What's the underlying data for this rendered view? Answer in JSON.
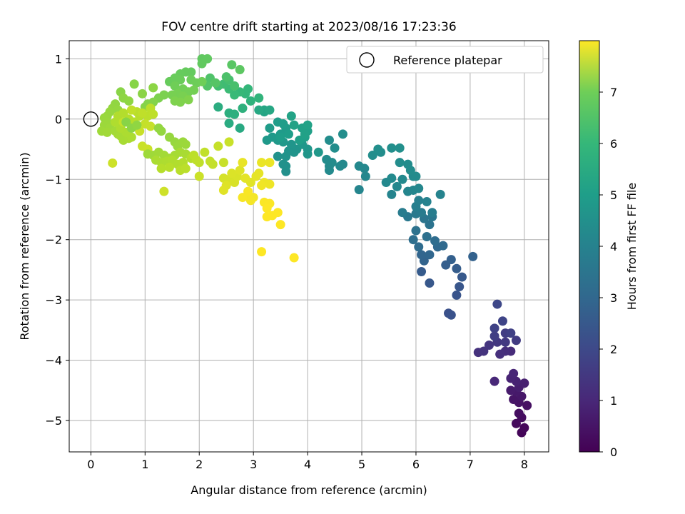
{
  "chart_data": {
    "type": "scatter",
    "title": "FOV centre drift starting at 2023/08/16 17:23:36",
    "xlabel": "Angular distance from reference (arcmin)",
    "ylabel": "Rotation from reference (arcmin)",
    "xlim": [
      -0.4,
      8.45
    ],
    "ylim": [
      -5.52,
      1.3
    ],
    "xticks": [
      "0",
      "1",
      "2",
      "3",
      "4",
      "5",
      "6",
      "7",
      "8"
    ],
    "yticks": [
      "1",
      "0",
      "−1",
      "−2",
      "−3",
      "−4",
      "−5"
    ],
    "grid": true,
    "colormap": "viridis",
    "colorbar": {
      "label": "Hours from first FF file",
      "range": [
        0,
        8.0
      ],
      "ticks": [
        "0",
        "1",
        "2",
        "3",
        "4",
        "5",
        "6",
        "7"
      ]
    },
    "legend": {
      "location": "upper right",
      "entries": [
        "Reference platepar"
      ]
    },
    "reference_point": {
      "x": 0,
      "y": 0
    },
    "points": [
      [
        7.95,
        -5.2,
        0.1
      ],
      [
        8.0,
        -5.12,
        0.15
      ],
      [
        7.85,
        -5.05,
        0.2
      ],
      [
        7.95,
        -4.95,
        0.25
      ],
      [
        7.9,
        -4.88,
        0.3
      ],
      [
        8.05,
        -4.75,
        0.35
      ],
      [
        7.9,
        -4.7,
        0.4
      ],
      [
        7.8,
        -4.65,
        0.45
      ],
      [
        7.95,
        -4.6,
        0.5
      ],
      [
        7.85,
        -4.52,
        0.55
      ],
      [
        7.75,
        -4.5,
        0.6
      ],
      [
        7.9,
        -4.45,
        0.65
      ],
      [
        8.0,
        -4.38,
        0.7
      ],
      [
        7.85,
        -4.35,
        0.75
      ],
      [
        7.75,
        -4.3,
        0.8
      ],
      [
        7.8,
        -4.22,
        0.85
      ],
      [
        7.45,
        -4.35,
        0.9
      ],
      [
        7.75,
        -3.85,
        1.0
      ],
      [
        7.65,
        -3.85,
        1.05
      ],
      [
        7.55,
        -3.9,
        1.1
      ],
      [
        7.15,
        -3.87,
        1.15
      ],
      [
        7.25,
        -3.85,
        1.2
      ],
      [
        7.35,
        -3.75,
        1.25
      ],
      [
        7.5,
        -3.7,
        1.3
      ],
      [
        7.65,
        -3.7,
        1.35
      ],
      [
        7.85,
        -3.67,
        1.4
      ],
      [
        7.65,
        -3.55,
        1.45
      ],
      [
        7.45,
        -3.6,
        1.5
      ],
      [
        7.75,
        -3.55,
        1.55
      ],
      [
        7.45,
        -3.47,
        1.6
      ],
      [
        7.6,
        -3.35,
        1.65
      ],
      [
        7.5,
        -3.07,
        1.75
      ],
      [
        6.6,
        -3.22,
        2.0
      ],
      [
        6.65,
        -3.25,
        2.05
      ],
      [
        6.75,
        -2.92,
        2.1
      ],
      [
        6.8,
        -2.78,
        2.15
      ],
      [
        6.25,
        -2.72,
        2.2
      ],
      [
        6.85,
        -2.62,
        2.25
      ],
      [
        6.1,
        -2.53,
        2.3
      ],
      [
        6.75,
        -2.48,
        2.35
      ],
      [
        6.55,
        -2.42,
        2.4
      ],
      [
        6.65,
        -2.33,
        2.45
      ],
      [
        7.05,
        -2.28,
        2.5
      ],
      [
        6.15,
        -2.35,
        2.55
      ],
      [
        6.1,
        -2.25,
        2.6
      ],
      [
        6.25,
        -2.25,
        2.65
      ],
      [
        6.4,
        -2.12,
        2.7
      ],
      [
        6.5,
        -2.1,
        2.75
      ],
      [
        6.05,
        -2.12,
        2.8
      ],
      [
        6.35,
        -2.02,
        2.85
      ],
      [
        5.95,
        -2.0,
        2.9
      ],
      [
        6.2,
        -1.95,
        2.95
      ],
      [
        6.0,
        -1.85,
        3.0
      ],
      [
        6.25,
        -1.75,
        3.05
      ],
      [
        6.15,
        -1.65,
        3.1
      ],
      [
        6.3,
        -1.62,
        3.15
      ],
      [
        5.85,
        -1.62,
        3.2
      ],
      [
        6.0,
        -1.57,
        3.25
      ],
      [
        6.1,
        -1.55,
        3.3
      ],
      [
        5.75,
        -1.55,
        3.35
      ],
      [
        6.3,
        -1.55,
        3.4
      ],
      [
        6.0,
        -1.45,
        3.45
      ],
      [
        6.05,
        -1.35,
        3.5
      ],
      [
        6.2,
        -1.37,
        3.55
      ],
      [
        6.45,
        -1.25,
        3.6
      ],
      [
        5.55,
        -1.25,
        3.62
      ],
      [
        5.85,
        -1.2,
        3.65
      ],
      [
        5.95,
        -1.18,
        3.68
      ],
      [
        6.05,
        -1.15,
        3.7
      ],
      [
        5.65,
        -1.12,
        3.72
      ],
      [
        5.45,
        -1.05,
        3.75
      ],
      [
        5.75,
        -1.0,
        3.78
      ],
      [
        5.55,
        -0.98,
        3.8
      ],
      [
        5.95,
        -0.95,
        3.82
      ],
      [
        6.0,
        -0.95,
        3.84
      ],
      [
        5.9,
        -0.85,
        3.86
      ],
      [
        5.85,
        -0.75,
        3.88
      ],
      [
        5.7,
        -0.72,
        3.9
      ],
      [
        5.35,
        -0.55,
        3.92
      ],
      [
        5.2,
        -0.6,
        3.94
      ],
      [
        5.3,
        -0.5,
        3.96
      ],
      [
        5.55,
        -0.48,
        3.98
      ],
      [
        5.7,
        -0.48,
        4.0
      ],
      [
        4.95,
        -1.17,
        3.65
      ],
      [
        5.07,
        -0.95,
        3.7
      ],
      [
        5.05,
        -0.82,
        3.72
      ],
      [
        4.95,
        -0.78,
        3.75
      ],
      [
        4.65,
        -0.75,
        3.78
      ],
      [
        4.6,
        -0.78,
        3.8
      ],
      [
        4.4,
        -0.85,
        3.82
      ],
      [
        4.4,
        -0.78,
        3.84
      ],
      [
        4.45,
        -0.72,
        3.86
      ],
      [
        4.35,
        -0.67,
        3.88
      ],
      [
        4.5,
        -0.48,
        3.9
      ],
      [
        4.4,
        -0.35,
        3.92
      ],
      [
        4.65,
        -0.25,
        3.94
      ],
      [
        3.6,
        -0.87,
        4.0
      ],
      [
        3.6,
        -0.78,
        4.02
      ],
      [
        3.55,
        -0.75,
        4.04
      ],
      [
        3.45,
        -0.62,
        4.06
      ],
      [
        3.6,
        -0.62,
        4.08
      ],
      [
        3.65,
        -0.53,
        4.1
      ],
      [
        3.75,
        -0.55,
        4.12
      ],
      [
        3.8,
        -0.5,
        4.14
      ],
      [
        3.7,
        -0.42,
        4.16
      ],
      [
        4.0,
        -0.58,
        4.18
      ],
      [
        4.0,
        -0.5,
        4.2
      ],
      [
        3.9,
        -0.42,
        4.22
      ],
      [
        4.2,
        -0.55,
        4.24
      ],
      [
        3.55,
        -0.38,
        4.26
      ],
      [
        3.45,
        -0.35,
        4.28
      ],
      [
        3.25,
        -0.35,
        4.3
      ],
      [
        3.35,
        -0.3,
        4.32
      ],
      [
        3.5,
        -0.25,
        4.34
      ],
      [
        3.6,
        -0.15,
        4.36
      ],
      [
        3.3,
        -0.15,
        4.38
      ],
      [
        3.45,
        -0.05,
        4.4
      ],
      [
        3.55,
        -0.08,
        4.42
      ],
      [
        3.5,
        -0.3,
        4.44
      ],
      [
        3.65,
        -0.25,
        4.46
      ],
      [
        3.85,
        -0.35,
        4.48
      ],
      [
        3.95,
        -0.3,
        4.5
      ],
      [
        4.0,
        -0.2,
        4.52
      ],
      [
        3.9,
        -0.15,
        4.54
      ],
      [
        3.95,
        -0.25,
        4.56
      ],
      [
        4.0,
        -0.1,
        4.58
      ],
      [
        3.75,
        -0.1,
        4.6
      ],
      [
        3.7,
        0.05,
        4.62
      ],
      [
        3.2,
        0.12,
        4.65
      ],
      [
        3.2,
        0.15,
        4.7
      ],
      [
        3.3,
        0.15,
        4.75
      ],
      [
        3.1,
        0.15,
        4.8
      ],
      [
        2.75,
        -0.15,
        4.85
      ],
      [
        2.55,
        -0.07,
        4.9
      ],
      [
        2.35,
        0.2,
        4.95
      ],
      [
        2.55,
        0.1,
        5.0
      ],
      [
        2.65,
        0.08,
        5.05
      ],
      [
        2.8,
        0.18,
        5.1
      ],
      [
        2.95,
        0.3,
        5.15
      ],
      [
        3.1,
        0.35,
        5.2
      ],
      [
        2.85,
        0.42,
        5.25
      ],
      [
        2.9,
        0.5,
        5.3
      ],
      [
        2.75,
        0.45,
        5.35
      ],
      [
        2.65,
        0.4,
        5.4
      ],
      [
        2.55,
        0.5,
        5.45
      ],
      [
        2.45,
        0.58,
        5.5
      ],
      [
        2.35,
        0.55,
        5.55
      ],
      [
        2.55,
        0.65,
        5.6
      ],
      [
        2.65,
        0.55,
        5.65
      ],
      [
        2.5,
        0.7,
        5.7
      ],
      [
        2.2,
        0.68,
        5.75
      ],
      [
        2.15,
        0.55,
        5.8
      ],
      [
        2.3,
        0.6,
        5.85
      ],
      [
        2.6,
        0.9,
        5.9
      ],
      [
        2.75,
        0.82,
        5.95
      ],
      [
        2.05,
        1.0,
        6.0
      ],
      [
        2.15,
        1.0,
        6.02
      ],
      [
        2.05,
        0.92,
        6.04
      ],
      [
        1.85,
        0.78,
        6.06
      ],
      [
        1.75,
        0.78,
        6.08
      ],
      [
        1.65,
        0.75,
        6.1
      ],
      [
        1.45,
        0.62,
        6.12
      ],
      [
        1.55,
        0.68,
        6.14
      ],
      [
        1.65,
        0.65,
        6.16
      ],
      [
        1.85,
        0.65,
        6.18
      ],
      [
        1.95,
        0.6,
        6.2
      ],
      [
        2.05,
        0.62,
        6.22
      ],
      [
        1.55,
        0.55,
        6.24
      ],
      [
        1.7,
        0.5,
        6.26
      ],
      [
        1.8,
        0.45,
        6.28
      ],
      [
        1.9,
        0.48,
        6.3
      ],
      [
        1.6,
        0.42,
        6.32
      ],
      [
        1.5,
        0.4,
        6.34
      ],
      [
        1.7,
        0.38,
        6.36
      ],
      [
        1.35,
        0.4,
        6.38
      ],
      [
        1.25,
        0.35,
        6.4
      ],
      [
        1.55,
        0.3,
        6.42
      ],
      [
        1.65,
        0.28,
        6.44
      ],
      [
        1.8,
        0.32,
        6.46
      ],
      [
        1.15,
        0.28,
        6.48
      ],
      [
        1.05,
        0.25,
        6.5
      ],
      [
        1.0,
        0.2,
        6.52
      ],
      [
        0.8,
        0.58,
        6.54
      ],
      [
        0.55,
        0.45,
        6.56
      ],
      [
        0.95,
        0.42,
        6.58
      ],
      [
        1.15,
        0.52,
        6.6
      ],
      [
        0.6,
        0.35,
        6.62
      ],
      [
        0.7,
        0.3,
        6.64
      ],
      [
        0.45,
        0.25,
        6.66
      ],
      [
        0.4,
        0.18,
        6.68
      ],
      [
        0.5,
        0.15,
        6.7
      ],
      [
        0.35,
        0.12,
        6.72
      ],
      [
        0.3,
        0.05,
        6.74
      ],
      [
        0.25,
        0.02,
        6.76
      ],
      [
        0.3,
        -0.05,
        6.78
      ],
      [
        0.25,
        -0.1,
        6.8
      ],
      [
        0.35,
        -0.15,
        6.82
      ],
      [
        0.2,
        -0.2,
        6.84
      ],
      [
        0.3,
        -0.22,
        6.86
      ],
      [
        0.45,
        -0.2,
        6.88
      ],
      [
        0.5,
        -0.25,
        6.9
      ],
      [
        0.55,
        -0.28,
        6.92
      ],
      [
        0.6,
        -0.35,
        6.94
      ],
      [
        0.7,
        -0.32,
        6.96
      ],
      [
        0.75,
        -0.3,
        6.98
      ],
      [
        0.65,
        -0.22,
        7.0
      ],
      [
        0.55,
        -0.15,
        7.02
      ],
      [
        0.45,
        -0.05,
        7.04
      ],
      [
        0.5,
        0.05,
        7.06
      ],
      [
        0.6,
        0.1,
        7.08
      ],
      [
        0.7,
        0.0,
        7.1
      ],
      [
        0.8,
        -0.05,
        7.12
      ],
      [
        0.9,
        0.05,
        7.14
      ],
      [
        0.85,
        0.12,
        7.16
      ],
      [
        1.05,
        0.05,
        7.18
      ],
      [
        1.1,
        0.18,
        7.2
      ],
      [
        1.15,
        0.08,
        7.22
      ],
      [
        0.95,
        0.1,
        7.24
      ],
      [
        0.75,
        0.15,
        7.26
      ],
      [
        0.6,
        -0.05,
        7.28
      ],
      [
        1.0,
        -0.08,
        7.3
      ],
      [
        1.1,
        -0.12,
        7.32
      ],
      [
        0.9,
        -0.2,
        7.34
      ],
      [
        0.95,
        -0.45,
        7.36
      ],
      [
        1.05,
        -0.5,
        7.38
      ],
      [
        0.4,
        -0.73,
        7.4
      ],
      [
        1.35,
        -1.2,
        7.42
      ],
      [
        0.65,
        -0.05,
        6.55
      ],
      [
        0.75,
        -0.15,
        6.6
      ],
      [
        0.85,
        -0.1,
        6.65
      ],
      [
        1.25,
        -0.15,
        6.68
      ],
      [
        1.3,
        -0.2,
        6.7
      ],
      [
        1.45,
        -0.3,
        6.72
      ],
      [
        1.55,
        -0.38,
        6.74
      ],
      [
        1.6,
        -0.45,
        6.76
      ],
      [
        1.7,
        -0.38,
        6.78
      ],
      [
        1.75,
        -0.42,
        6.8
      ],
      [
        1.05,
        -0.58,
        6.82
      ],
      [
        1.15,
        -0.6,
        6.84
      ],
      [
        1.25,
        -0.55,
        6.86
      ],
      [
        1.35,
        -0.6,
        6.88
      ],
      [
        1.45,
        -0.65,
        6.9
      ],
      [
        1.55,
        -0.6,
        6.92
      ],
      [
        1.65,
        -0.55,
        6.94
      ],
      [
        1.75,
        -0.58,
        6.96
      ],
      [
        1.2,
        -0.68,
        6.98
      ],
      [
        1.3,
        -0.72,
        7.0
      ],
      [
        1.4,
        -0.7,
        7.02
      ],
      [
        1.5,
        -0.68,
        7.04
      ],
      [
        1.6,
        -0.75,
        7.06
      ],
      [
        1.7,
        -0.72,
        7.08
      ],
      [
        1.85,
        -0.65,
        7.1
      ],
      [
        1.3,
        -0.82,
        7.12
      ],
      [
        1.45,
        -0.8,
        7.14
      ],
      [
        1.65,
        -0.85,
        7.16
      ],
      [
        1.75,
        -0.82,
        7.18
      ],
      [
        1.9,
        -0.6,
        7.2
      ],
      [
        1.95,
        -0.68,
        7.22
      ],
      [
        2.0,
        -0.72,
        7.24
      ],
      [
        2.1,
        -0.55,
        7.26
      ],
      [
        2.2,
        -0.7,
        7.28
      ],
      [
        2.25,
        -0.75,
        7.3
      ],
      [
        2.35,
        -0.45,
        7.32
      ],
      [
        2.45,
        -0.72,
        7.34
      ],
      [
        2.55,
        -0.38,
        7.36
      ],
      [
        2.0,
        -0.95,
        7.38
      ],
      [
        2.45,
        -0.98,
        7.5
      ],
      [
        2.55,
        -1.0,
        7.52
      ],
      [
        2.65,
        -1.05,
        7.54
      ],
      [
        2.7,
        -0.95,
        7.56
      ],
      [
        2.6,
        -0.9,
        7.58
      ],
      [
        2.75,
        -0.85,
        7.6
      ],
      [
        2.5,
        -1.1,
        7.62
      ],
      [
        2.45,
        -1.18,
        7.64
      ],
      [
        2.95,
        -1.05,
        7.66
      ],
      [
        2.85,
        -0.98,
        7.68
      ],
      [
        3.05,
        -0.95,
        7.7
      ],
      [
        3.1,
        -0.9,
        7.72
      ],
      [
        2.8,
        -0.72,
        7.74
      ],
      [
        3.15,
        -0.72,
        7.76
      ],
      [
        3.3,
        -0.72,
        7.78
      ],
      [
        3.2,
        -1.05,
        7.8
      ],
      [
        3.3,
        -1.08,
        7.82
      ],
      [
        3.15,
        -1.1,
        7.84
      ],
      [
        2.9,
        -1.25,
        7.86
      ],
      [
        3.0,
        -1.3,
        7.88
      ],
      [
        2.95,
        -1.35,
        7.9
      ],
      [
        2.8,
        -1.3,
        7.92
      ],
      [
        2.9,
        -1.2,
        7.94
      ],
      [
        3.2,
        -1.38,
        7.96
      ],
      [
        3.3,
        -1.4,
        7.98
      ],
      [
        3.25,
        -1.48,
        8.0
      ],
      [
        3.35,
        -1.6,
        8.0
      ],
      [
        3.25,
        -1.62,
        8.0
      ],
      [
        3.45,
        -1.55,
        8.0
      ],
      [
        3.5,
        -1.75,
        8.0
      ],
      [
        3.15,
        -2.2,
        8.0
      ],
      [
        3.75,
        -2.3,
        8.0
      ]
    ]
  }
}
